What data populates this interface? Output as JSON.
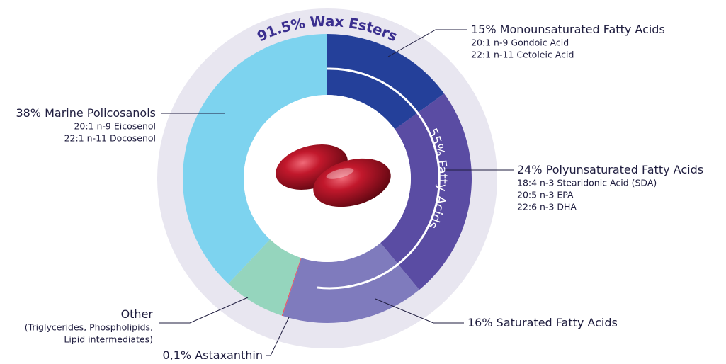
{
  "chart_data": {
    "type": "pie",
    "donut": true,
    "categories": [
      "Monounsaturated Fatty Acids",
      "Polyunsaturated Fatty Acids",
      "Saturated Fatty Acids",
      "Astaxanthin",
      "Other",
      "Marine Policosanols"
    ],
    "values": [
      15,
      24,
      16,
      0.1,
      6.9,
      38
    ],
    "value_labels": [
      "15%",
      "24%",
      "16%",
      "0,1%",
      null,
      "38%"
    ],
    "colors": [
      "#24409a",
      "#5a4ca3",
      "#7f7bbd",
      "#f0505a",
      "#95d5bd",
      "#7dd3ef"
    ],
    "details": [
      [
        "20:1 n-9 Gondoic Acid",
        "22:1 n-11 Cetoleic Acid"
      ],
      [
        "18:4 n-3 Stearidonic Acid (SDA)",
        "20:5 n-3  EPA",
        "22:6 n-3  DHA"
      ],
      [],
      [],
      [
        "(Triglycerides, Phospholipids,",
        "Lipid intermediates)"
      ],
      [
        "20:1 n-9 Eicosenol",
        "22:1 n-11 Docosenol"
      ]
    ],
    "annotations": [
      "91.5% Wax Esters",
      "55% Fatty Acids"
    ]
  }
}
